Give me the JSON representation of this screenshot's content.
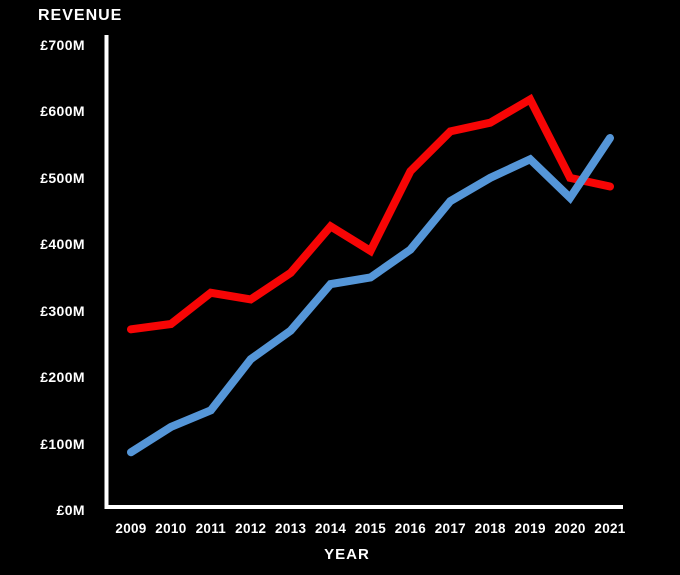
{
  "page": {
    "background_color": "#000000",
    "text_color": "#ffffff"
  },
  "chart_data": {
    "type": "line",
    "title": "REVENUE",
    "xlabel": "YEAR",
    "ylabel": "REVENUE",
    "legend": "none",
    "grid": false,
    "axis_color": "#ffffff",
    "ylim": [
      0,
      700
    ],
    "y_tick_values": [
      700,
      600,
      500,
      400,
      300,
      200,
      100,
      0
    ],
    "y_tick_labels": [
      "£700M",
      "£600M",
      "£500M",
      "£400M",
      "£300M",
      "£200M",
      "£100M",
      "£0M"
    ],
    "categories": [
      "2009",
      "2010",
      "2011",
      "2012",
      "2013",
      "2014",
      "2015",
      "2016",
      "2017",
      "2018",
      "2019",
      "2020",
      "2021"
    ],
    "series": [
      {
        "name": "revenue-red",
        "color": "#f70505",
        "values": [
          272,
          280,
          327,
          317,
          357,
          427,
          390,
          510,
          570,
          583,
          618,
          500,
          487
        ]
      },
      {
        "name": "revenue-blue",
        "color": "#5596d8",
        "values": [
          87,
          125,
          150,
          227,
          270,
          340,
          350,
          392,
          465,
          500,
          528,
          470,
          560
        ]
      }
    ]
  }
}
